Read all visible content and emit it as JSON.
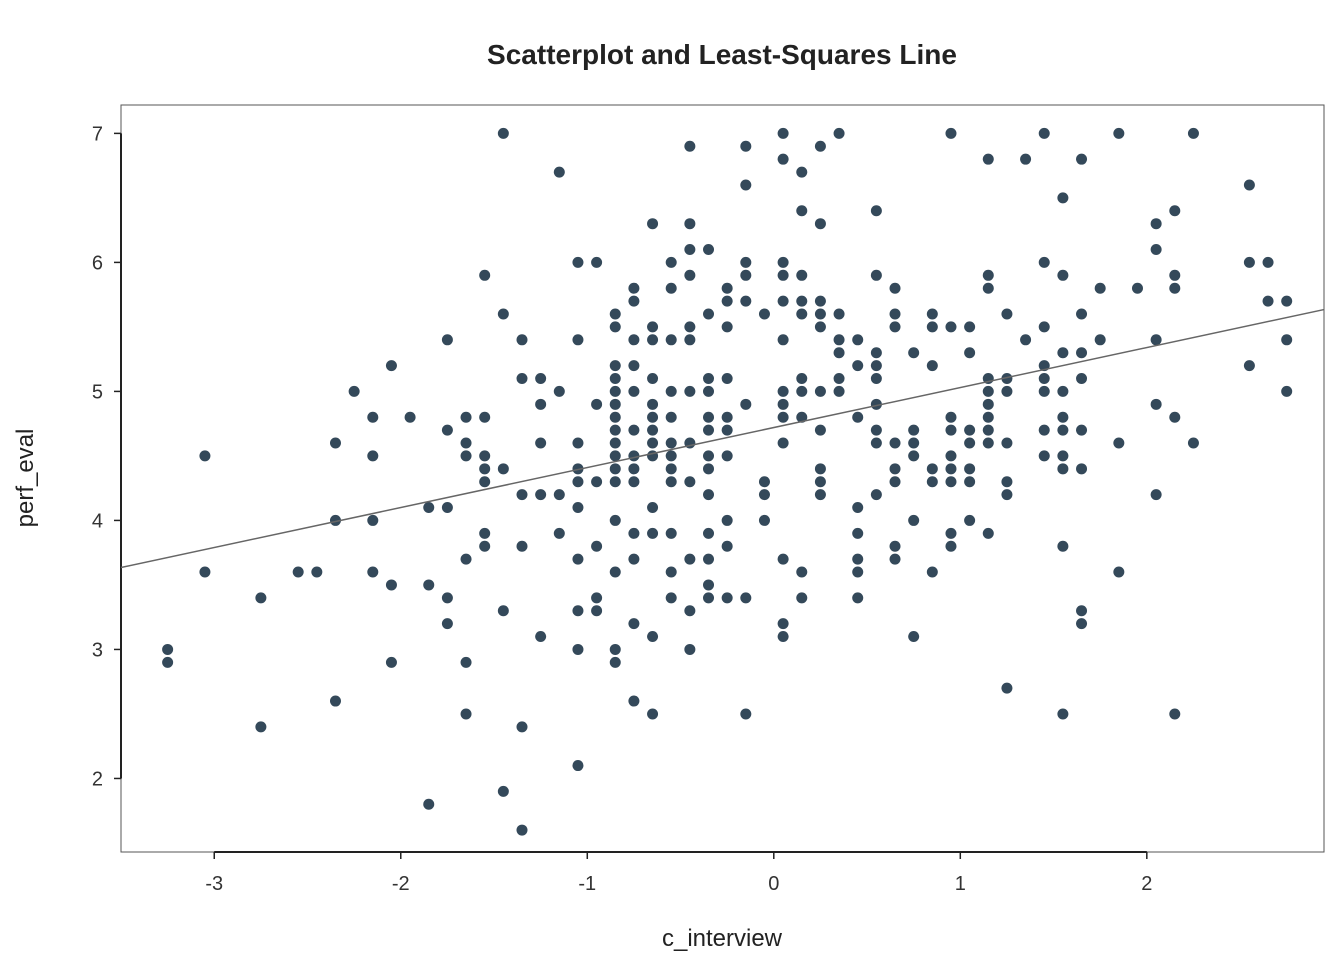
{
  "chart_data": {
    "type": "scatter",
    "title": "Scatterplot and Least-Squares Line",
    "xlabel": "c_interview",
    "ylabel": "perf_eval",
    "xlim": [
      -3.5,
      2.95
    ],
    "ylim": [
      1.43,
      7.22
    ],
    "x_ticks": [
      -3,
      -2,
      -1,
      0,
      1,
      2
    ],
    "y_ticks": [
      2,
      3,
      4,
      5,
      6,
      7
    ],
    "grid": false,
    "legend": "none",
    "point_color": "#34495a",
    "line_color": "#666666",
    "fit_line": {
      "intercept": 4.72,
      "slope": 0.31
    },
    "points": [
      [
        -3.25,
        3.0
      ],
      [
        -3.25,
        2.9
      ],
      [
        -3.05,
        4.5
      ],
      [
        -3.05,
        3.6
      ],
      [
        -2.75,
        3.4
      ],
      [
        -2.75,
        2.4
      ],
      [
        -2.55,
        3.6
      ],
      [
        -2.45,
        3.6
      ],
      [
        -2.35,
        4.6
      ],
      [
        -2.35,
        4.0
      ],
      [
        -2.35,
        2.6
      ],
      [
        -2.25,
        5.0
      ],
      [
        -2.15,
        4.8
      ],
      [
        -2.15,
        4.5
      ],
      [
        -2.15,
        4.0
      ],
      [
        -2.15,
        3.6
      ],
      [
        -2.05,
        5.2
      ],
      [
        -2.05,
        3.5
      ],
      [
        -2.05,
        2.9
      ],
      [
        -1.95,
        4.8
      ],
      [
        -1.85,
        4.1
      ],
      [
        -1.85,
        3.5
      ],
      [
        -1.85,
        1.8
      ],
      [
        -1.75,
        5.4
      ],
      [
        -1.75,
        4.7
      ],
      [
        -1.75,
        4.1
      ],
      [
        -1.75,
        3.4
      ],
      [
        -1.75,
        3.2
      ],
      [
        -1.65,
        4.8
      ],
      [
        -1.65,
        4.6
      ],
      [
        -1.65,
        4.5
      ],
      [
        -1.65,
        3.7
      ],
      [
        -1.65,
        2.9
      ],
      [
        -1.65,
        2.5
      ],
      [
        -1.55,
        5.9
      ],
      [
        -1.55,
        4.8
      ],
      [
        -1.55,
        4.5
      ],
      [
        -1.55,
        4.4
      ],
      [
        -1.55,
        4.3
      ],
      [
        -1.55,
        3.9
      ],
      [
        -1.55,
        3.8
      ],
      [
        -1.45,
        7.0
      ],
      [
        -1.45,
        5.6
      ],
      [
        -1.45,
        4.4
      ],
      [
        -1.45,
        3.3
      ],
      [
        -1.45,
        1.9
      ],
      [
        -1.35,
        5.4
      ],
      [
        -1.35,
        5.1
      ],
      [
        -1.35,
        4.2
      ],
      [
        -1.35,
        3.8
      ],
      [
        -1.35,
        2.4
      ],
      [
        -1.35,
        1.6
      ],
      [
        -1.25,
        5.1
      ],
      [
        -1.25,
        4.9
      ],
      [
        -1.25,
        4.6
      ],
      [
        -1.25,
        4.2
      ],
      [
        -1.25,
        3.1
      ],
      [
        -1.15,
        6.7
      ],
      [
        -1.15,
        5.0
      ],
      [
        -1.15,
        4.2
      ],
      [
        -1.15,
        3.9
      ],
      [
        -1.05,
        6.0
      ],
      [
        -1.05,
        5.4
      ],
      [
        -1.05,
        4.6
      ],
      [
        -1.05,
        4.4
      ],
      [
        -1.05,
        4.3
      ],
      [
        -1.05,
        4.1
      ],
      [
        -1.05,
        3.7
      ],
      [
        -1.05,
        3.3
      ],
      [
        -1.05,
        3.0
      ],
      [
        -1.05,
        2.1
      ],
      [
        -0.95,
        6.0
      ],
      [
        -0.95,
        4.9
      ],
      [
        -0.95,
        4.3
      ],
      [
        -0.95,
        3.8
      ],
      [
        -0.95,
        3.4
      ],
      [
        -0.95,
        3.3
      ],
      [
        -0.85,
        5.6
      ],
      [
        -0.85,
        5.5
      ],
      [
        -0.85,
        5.2
      ],
      [
        -0.85,
        5.1
      ],
      [
        -0.85,
        5.0
      ],
      [
        -0.85,
        4.9
      ],
      [
        -0.85,
        4.8
      ],
      [
        -0.85,
        4.7
      ],
      [
        -0.85,
        4.6
      ],
      [
        -0.85,
        4.5
      ],
      [
        -0.85,
        4.4
      ],
      [
        -0.85,
        4.3
      ],
      [
        -0.85,
        4.0
      ],
      [
        -0.85,
        3.6
      ],
      [
        -0.85,
        3.0
      ],
      [
        -0.85,
        2.9
      ],
      [
        -0.75,
        5.8
      ],
      [
        -0.75,
        5.7
      ],
      [
        -0.75,
        5.4
      ],
      [
        -0.75,
        5.2
      ],
      [
        -0.75,
        5.0
      ],
      [
        -0.75,
        4.7
      ],
      [
        -0.75,
        4.5
      ],
      [
        -0.75,
        4.4
      ],
      [
        -0.75,
        4.3
      ],
      [
        -0.75,
        3.9
      ],
      [
        -0.75,
        3.7
      ],
      [
        -0.75,
        3.2
      ],
      [
        -0.75,
        2.6
      ],
      [
        -0.65,
        6.3
      ],
      [
        -0.65,
        5.5
      ],
      [
        -0.65,
        5.4
      ],
      [
        -0.65,
        5.1
      ],
      [
        -0.65,
        4.9
      ],
      [
        -0.65,
        4.8
      ],
      [
        -0.65,
        4.7
      ],
      [
        -0.65,
        4.6
      ],
      [
        -0.65,
        4.5
      ],
      [
        -0.65,
        4.1
      ],
      [
        -0.65,
        3.9
      ],
      [
        -0.65,
        3.1
      ],
      [
        -0.65,
        2.5
      ],
      [
        -0.55,
        6.0
      ],
      [
        -0.55,
        5.8
      ],
      [
        -0.55,
        5.4
      ],
      [
        -0.55,
        5.0
      ],
      [
        -0.55,
        4.8
      ],
      [
        -0.55,
        4.6
      ],
      [
        -0.55,
        4.5
      ],
      [
        -0.55,
        4.4
      ],
      [
        -0.55,
        4.3
      ],
      [
        -0.55,
        3.9
      ],
      [
        -0.55,
        3.6
      ],
      [
        -0.55,
        3.4
      ],
      [
        -0.45,
        6.9
      ],
      [
        -0.45,
        6.3
      ],
      [
        -0.45,
        6.1
      ],
      [
        -0.45,
        5.9
      ],
      [
        -0.45,
        5.5
      ],
      [
        -0.45,
        5.4
      ],
      [
        -0.45,
        5.0
      ],
      [
        -0.45,
        4.6
      ],
      [
        -0.45,
        4.3
      ],
      [
        -0.45,
        3.7
      ],
      [
        -0.45,
        3.3
      ],
      [
        -0.45,
        3.0
      ],
      [
        -0.35,
        6.1
      ],
      [
        -0.35,
        5.6
      ],
      [
        -0.35,
        5.1
      ],
      [
        -0.35,
        5.0
      ],
      [
        -0.35,
        4.8
      ],
      [
        -0.35,
        4.7
      ],
      [
        -0.35,
        4.5
      ],
      [
        -0.35,
        4.4
      ],
      [
        -0.35,
        4.2
      ],
      [
        -0.35,
        3.9
      ],
      [
        -0.35,
        3.7
      ],
      [
        -0.35,
        3.5
      ],
      [
        -0.35,
        3.4
      ],
      [
        -0.25,
        5.8
      ],
      [
        -0.25,
        5.7
      ],
      [
        -0.25,
        5.5
      ],
      [
        -0.25,
        5.1
      ],
      [
        -0.25,
        4.8
      ],
      [
        -0.25,
        4.7
      ],
      [
        -0.25,
        4.5
      ],
      [
        -0.25,
        4.0
      ],
      [
        -0.25,
        3.8
      ],
      [
        -0.25,
        3.4
      ],
      [
        -0.15,
        6.9
      ],
      [
        -0.15,
        6.6
      ],
      [
        -0.15,
        6.0
      ],
      [
        -0.15,
        5.9
      ],
      [
        -0.15,
        5.7
      ],
      [
        -0.15,
        4.9
      ],
      [
        -0.15,
        3.4
      ],
      [
        -0.15,
        2.5
      ],
      [
        -0.05,
        5.6
      ],
      [
        -0.05,
        4.3
      ],
      [
        -0.05,
        4.2
      ],
      [
        -0.05,
        4.0
      ],
      [
        0.05,
        7.0
      ],
      [
        0.05,
        6.8
      ],
      [
        0.05,
        6.0
      ],
      [
        0.05,
        5.9
      ],
      [
        0.05,
        5.7
      ],
      [
        0.05,
        5.4
      ],
      [
        0.05,
        5.0
      ],
      [
        0.05,
        4.9
      ],
      [
        0.05,
        4.8
      ],
      [
        0.05,
        4.6
      ],
      [
        0.05,
        3.7
      ],
      [
        0.05,
        3.2
      ],
      [
        0.05,
        3.1
      ],
      [
        0.15,
        6.7
      ],
      [
        0.15,
        6.4
      ],
      [
        0.15,
        5.9
      ],
      [
        0.15,
        5.7
      ],
      [
        0.15,
        5.6
      ],
      [
        0.15,
        5.1
      ],
      [
        0.15,
        5.0
      ],
      [
        0.15,
        4.8
      ],
      [
        0.15,
        3.6
      ],
      [
        0.15,
        3.4
      ],
      [
        0.25,
        6.9
      ],
      [
        0.25,
        6.3
      ],
      [
        0.25,
        5.7
      ],
      [
        0.25,
        5.6
      ],
      [
        0.25,
        5.5
      ],
      [
        0.25,
        5.0
      ],
      [
        0.25,
        4.7
      ],
      [
        0.25,
        4.4
      ],
      [
        0.25,
        4.3
      ],
      [
        0.25,
        4.2
      ],
      [
        0.35,
        7.0
      ],
      [
        0.35,
        5.6
      ],
      [
        0.35,
        5.4
      ],
      [
        0.35,
        5.3
      ],
      [
        0.35,
        5.1
      ],
      [
        0.35,
        5.0
      ],
      [
        0.45,
        5.4
      ],
      [
        0.45,
        5.2
      ],
      [
        0.45,
        4.8
      ],
      [
        0.45,
        4.1
      ],
      [
        0.45,
        3.9
      ],
      [
        0.45,
        3.7
      ],
      [
        0.45,
        3.6
      ],
      [
        0.45,
        3.4
      ],
      [
        0.55,
        6.4
      ],
      [
        0.55,
        5.9
      ],
      [
        0.55,
        5.3
      ],
      [
        0.55,
        5.2
      ],
      [
        0.55,
        5.1
      ],
      [
        0.55,
        4.9
      ],
      [
        0.55,
        4.7
      ],
      [
        0.55,
        4.6
      ],
      [
        0.55,
        4.2
      ],
      [
        0.65,
        5.8
      ],
      [
        0.65,
        5.6
      ],
      [
        0.65,
        5.5
      ],
      [
        0.65,
        4.6
      ],
      [
        0.65,
        4.4
      ],
      [
        0.65,
        4.3
      ],
      [
        0.65,
        3.8
      ],
      [
        0.65,
        3.7
      ],
      [
        0.75,
        5.3
      ],
      [
        0.75,
        4.7
      ],
      [
        0.75,
        4.6
      ],
      [
        0.75,
        4.5
      ],
      [
        0.75,
        4.0
      ],
      [
        0.75,
        3.1
      ],
      [
        0.85,
        5.6
      ],
      [
        0.85,
        5.5
      ],
      [
        0.85,
        5.2
      ],
      [
        0.85,
        4.4
      ],
      [
        0.85,
        4.3
      ],
      [
        0.85,
        3.6
      ],
      [
        0.95,
        7.0
      ],
      [
        0.95,
        5.5
      ],
      [
        0.95,
        4.8
      ],
      [
        0.95,
        4.7
      ],
      [
        0.95,
        4.5
      ],
      [
        0.95,
        4.4
      ],
      [
        0.95,
        4.3
      ],
      [
        0.95,
        3.9
      ],
      [
        0.95,
        3.8
      ],
      [
        1.05,
        5.5
      ],
      [
        1.05,
        5.3
      ],
      [
        1.05,
        4.7
      ],
      [
        1.05,
        4.6
      ],
      [
        1.05,
        4.4
      ],
      [
        1.05,
        4.3
      ],
      [
        1.05,
        4.0
      ],
      [
        1.15,
        6.8
      ],
      [
        1.15,
        5.9
      ],
      [
        1.15,
        5.8
      ],
      [
        1.15,
        5.1
      ],
      [
        1.15,
        5.0
      ],
      [
        1.15,
        4.9
      ],
      [
        1.15,
        4.8
      ],
      [
        1.15,
        4.7
      ],
      [
        1.15,
        4.6
      ],
      [
        1.15,
        3.9
      ],
      [
        1.25,
        5.6
      ],
      [
        1.25,
        5.1
      ],
      [
        1.25,
        5.0
      ],
      [
        1.25,
        4.6
      ],
      [
        1.25,
        4.3
      ],
      [
        1.25,
        4.2
      ],
      [
        1.25,
        2.7
      ],
      [
        1.35,
        6.8
      ],
      [
        1.35,
        5.4
      ],
      [
        1.45,
        7.0
      ],
      [
        1.45,
        6.0
      ],
      [
        1.45,
        5.5
      ],
      [
        1.45,
        5.2
      ],
      [
        1.45,
        5.1
      ],
      [
        1.45,
        5.0
      ],
      [
        1.45,
        4.7
      ],
      [
        1.45,
        4.5
      ],
      [
        1.55,
        6.5
      ],
      [
        1.55,
        5.9
      ],
      [
        1.55,
        5.3
      ],
      [
        1.55,
        5.0
      ],
      [
        1.55,
        4.8
      ],
      [
        1.55,
        4.7
      ],
      [
        1.55,
        4.5
      ],
      [
        1.55,
        4.4
      ],
      [
        1.55,
        3.8
      ],
      [
        1.55,
        2.5
      ],
      [
        1.65,
        6.8
      ],
      [
        1.65,
        5.6
      ],
      [
        1.65,
        5.3
      ],
      [
        1.65,
        5.1
      ],
      [
        1.65,
        4.7
      ],
      [
        1.65,
        4.4
      ],
      [
        1.65,
        3.3
      ],
      [
        1.65,
        3.2
      ],
      [
        1.75,
        5.8
      ],
      [
        1.75,
        5.4
      ],
      [
        1.85,
        7.0
      ],
      [
        1.85,
        4.6
      ],
      [
        1.85,
        3.6
      ],
      [
        1.95,
        5.8
      ],
      [
        2.05,
        6.3
      ],
      [
        2.05,
        6.1
      ],
      [
        2.05,
        5.4
      ],
      [
        2.05,
        4.9
      ],
      [
        2.05,
        4.2
      ],
      [
        2.15,
        6.4
      ],
      [
        2.15,
        5.9
      ],
      [
        2.15,
        5.8
      ],
      [
        2.15,
        4.8
      ],
      [
        2.15,
        2.5
      ],
      [
        2.25,
        7.0
      ],
      [
        2.25,
        4.6
      ],
      [
        2.55,
        6.6
      ],
      [
        2.55,
        6.0
      ],
      [
        2.55,
        5.2
      ],
      [
        2.65,
        6.0
      ],
      [
        2.65,
        5.7
      ],
      [
        2.75,
        5.7
      ],
      [
        2.75,
        5.4
      ],
      [
        2.75,
        5.0
      ]
    ]
  }
}
